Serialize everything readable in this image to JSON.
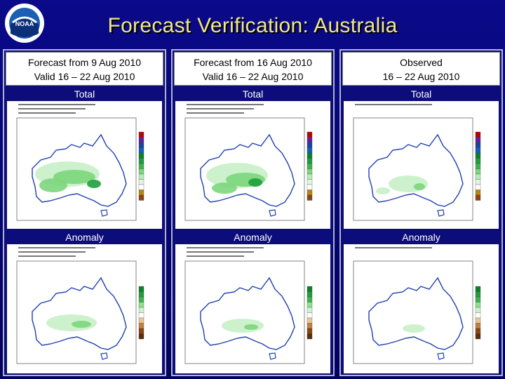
{
  "title": "Forecast Verification: Australia",
  "logo_text": "NOAA",
  "panels": [
    {
      "line1": "Forecast from 9 Aug 2010",
      "line2": "Valid 16 – 22 Aug 2010",
      "total_label": "Total",
      "anomaly_label": "Anomaly"
    },
    {
      "line1": "Forecast from 16 Aug 2010",
      "line2": "Valid 16 – 22 Aug 2010",
      "total_label": "Total",
      "anomaly_label": "Anomaly"
    },
    {
      "line1": "Observed",
      "line2": "16 – 22 Aug 2010",
      "total_label": "Total",
      "anomaly_label": "Anomaly"
    }
  ],
  "colors": {
    "title": "#f0e68c",
    "background": "#0a0a8a",
    "land": "#ffffff",
    "rain_light": "#c8f0c8",
    "rain_mid": "#7cd67c",
    "rain_heavy": "#1e9e3c",
    "coast": "#1f3fb0"
  }
}
